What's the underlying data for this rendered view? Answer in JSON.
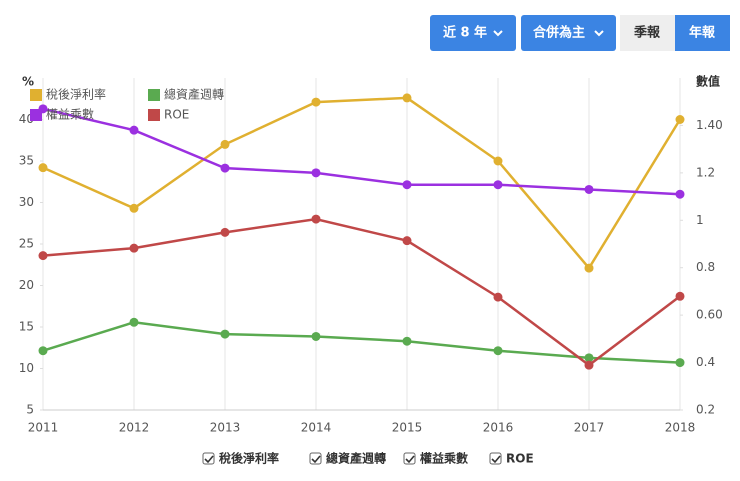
{
  "controls": [
    "近 8 年",
    "合併為主",
    "季報",
    "年報"
  ],
  "chart_data": {
    "type": "line",
    "y_label": "%",
    "y2_label": "數值",
    "categories": [
      "2011",
      "2012",
      "2013",
      "2014",
      "2015",
      "2016",
      "2017",
      "2018"
    ],
    "ylim": [
      5,
      45
    ],
    "yticks": [
      5,
      10,
      15,
      20,
      25,
      30,
      35,
      40
    ],
    "y2lim": [
      0.2,
      1.6
    ],
    "y2ticks": [
      0.2,
      0.4,
      {
        "value": 0.6,
        "label": "0.60"
      },
      0.8,
      1,
      1.2,
      {
        "value": 1.4,
        "label": "1.40"
      }
    ],
    "grid": true,
    "legend": "top-left",
    "series": [
      {
        "name": "稅後淨利率",
        "color": "#e0b030",
        "values": [
          34.2,
          29.3,
          37.0,
          42.1,
          42.6,
          35.0,
          22.1,
          40.0
        ]
      },
      {
        "name": "總資產週轉",
        "color": "#5aaa50",
        "axis": "y2",
        "values": [
          0.45,
          0.57,
          0.52,
          0.51,
          0.49,
          0.45,
          0.42,
          0.4
        ]
      },
      {
        "name": "權益乘數",
        "color": "#9b30e0",
        "axis": "y2",
        "values": [
          1.47,
          1.38,
          1.22,
          1.2,
          1.15,
          1.15,
          1.13,
          1.11
        ]
      },
      {
        "name": "ROE",
        "color": "#c04848",
        "values": [
          23.6,
          24.5,
          26.4,
          28.0,
          25.4,
          18.6,
          10.4,
          18.7
        ]
      }
    ]
  }
}
